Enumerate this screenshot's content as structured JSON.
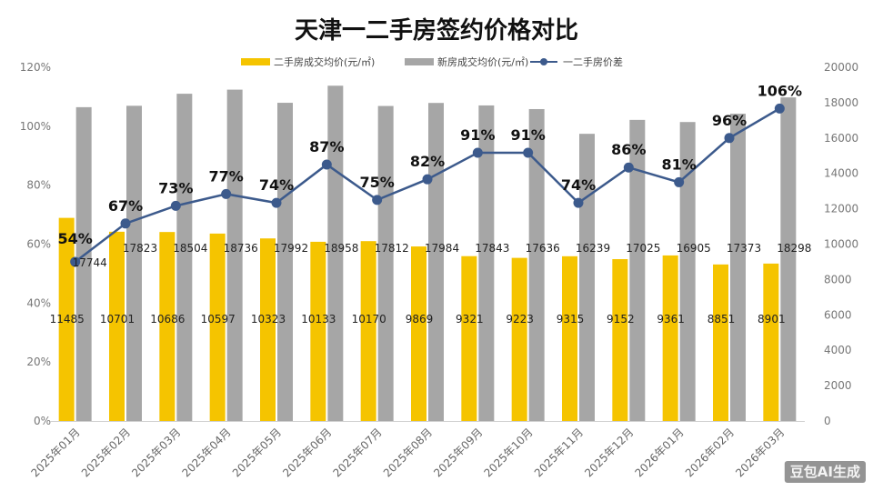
{
  "watermark": "豆包AI生成",
  "chart_data": {
    "type": "bar",
    "title": "天津一二手房签约价格对比",
    "categories": [
      "2025年01月",
      "2025年02月",
      "2025年03月",
      "2025年04月",
      "2025年05月",
      "2025年06月",
      "2025年07月",
      "2025年08月",
      "2025年09月",
      "2025年10月",
      "2025年11月",
      "2025年12月",
      "2026年01月",
      "2026年02月",
      "2026年03月"
    ],
    "series": [
      {
        "name": "二手房成交均价(元/㎡)",
        "type": "bar",
        "axis": "right",
        "color": "#F5C400",
        "values": [
          11485,
          10701,
          10686,
          10597,
          10323,
          10133,
          10170,
          9869,
          9321,
          9223,
          9315,
          9152,
          9361,
          8851,
          8901
        ]
      },
      {
        "name": "新房成交均价(元/㎡)",
        "type": "bar",
        "axis": "right",
        "color": "#A6A6A6",
        "values": [
          17744,
          17823,
          18504,
          18736,
          17992,
          18958,
          17812,
          17984,
          17843,
          17636,
          16239,
          17025,
          16905,
          17373,
          18298
        ]
      },
      {
        "name": "一二手房价差",
        "type": "line",
        "axis": "left",
        "color": "#3C5A8C",
        "values": [
          54,
          67,
          73,
          77,
          74,
          87,
          75,
          82,
          91,
          91,
          74,
          86,
          81,
          96,
          106
        ],
        "labels": [
          "54%",
          "67%",
          "73%",
          "77%",
          "74%",
          "87%",
          "75%",
          "82%",
          "91%",
          "91%",
          "74%",
          "86%",
          "81%",
          "96%",
          "106%"
        ]
      }
    ],
    "left_axis": {
      "ticks": [
        "0%",
        "20%",
        "40%",
        "60%",
        "80%",
        "100%",
        "120%"
      ],
      "ylim": [
        0,
        120
      ]
    },
    "right_axis": {
      "ticks": [
        "0",
        "2000",
        "4000",
        "6000",
        "8000",
        "10000",
        "12000",
        "14000",
        "16000",
        "18000",
        "20000"
      ],
      "ylim": [
        0,
        20000
      ]
    },
    "legend_position": "top-center",
    "grid": false
  }
}
